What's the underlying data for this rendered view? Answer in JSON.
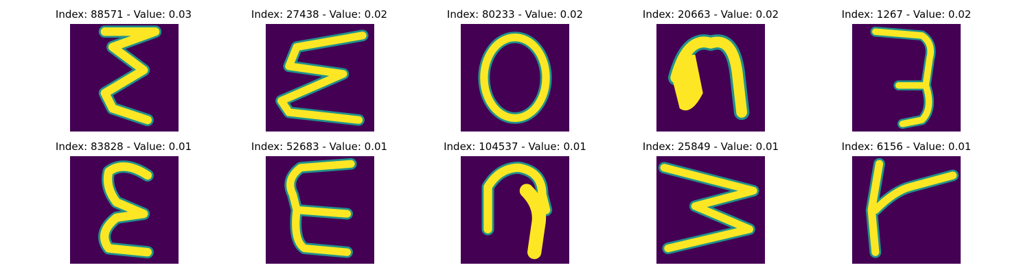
{
  "colors": {
    "background": "#440154",
    "mid": "#21918c",
    "stroke": "#fde725",
    "page": "#ffffff"
  },
  "grid": {
    "panels": [
      {
        "title": "Index: 88571 - Value: 0.03",
        "glyph": "sigma-vertical"
      },
      {
        "title": "Index: 27438 - Value: 0.02",
        "glyph": "sigma"
      },
      {
        "title": "Index: 80233 - Value: 0.02",
        "glyph": "ring"
      },
      {
        "title": "Index: 20663 - Value: 0.02",
        "glyph": "arch"
      },
      {
        "title": "Index: 1267 - Value: 0.02",
        "glyph": "three"
      },
      {
        "title": "Index: 83828 - Value: 0.01",
        "glyph": "epsilon"
      },
      {
        "title": "Index: 52683 - Value: 0.01",
        "glyph": "e-shape"
      },
      {
        "title": "Index: 104537 - Value: 0.01",
        "glyph": "hook"
      },
      {
        "title": "Index: 25849 - Value: 0.01",
        "glyph": "w-rotated"
      },
      {
        "title": "Index: 6156 - Value: 0.01",
        "glyph": "lambda"
      }
    ]
  }
}
